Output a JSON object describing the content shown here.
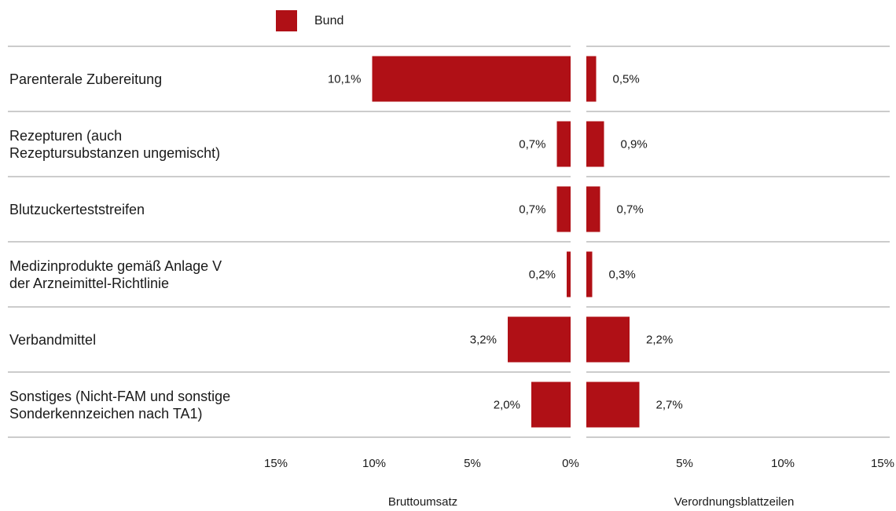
{
  "chart_data": {
    "type": "bar",
    "layout": "butterfly",
    "legend": {
      "position": "top-left",
      "entries": [
        {
          "name": "Bund",
          "color": "#b01016"
        }
      ]
    },
    "categories": [
      [
        "Parenterale Zubereitung"
      ],
      [
        "Rezepturen (auch",
        "Rezeptursubstanzen ungemischt)"
      ],
      [
        "Blutzuckerteststreifen"
      ],
      [
        "Medizinprodukte gemäß Anlage V",
        "der Arzneimittel-Richtlinie"
      ],
      [
        "Verbandmittel"
      ],
      [
        "Sonstiges (Nicht-FAM und sonstige",
        "Sonderkennzeichen nach TA1)"
      ]
    ],
    "series": [
      {
        "name": "Bund",
        "panel_title": "Bruttoumsatz",
        "direction": "left",
        "values": [
          10.1,
          0.7,
          0.7,
          0.2,
          3.2,
          2.0
        ],
        "labels": [
          "10,1%",
          "0,7%",
          "0,7%",
          "0,2%",
          "3,2%",
          "2,0%"
        ]
      },
      {
        "name": "Bund",
        "panel_title": "Verordnungsblattzeilen",
        "direction": "right",
        "values": [
          0.5,
          0.9,
          0.7,
          0.3,
          2.2,
          2.7
        ],
        "labels": [
          "0,5%",
          "0,9%",
          "0,7%",
          "0,3%",
          "2,2%",
          "2,7%"
        ]
      }
    ],
    "xlim": [
      0,
      15
    ],
    "ticks_left": [
      "15%",
      "10%",
      "5%",
      "0%"
    ],
    "ticks_right": [
      "5%",
      "10%",
      "15%"
    ],
    "tick_values_left": [
      15,
      10,
      5,
      0
    ],
    "tick_values_right": [
      5,
      10,
      15
    ],
    "bar_color": "#b01016",
    "grid_color": "#9a9a9a",
    "grid": false
  }
}
